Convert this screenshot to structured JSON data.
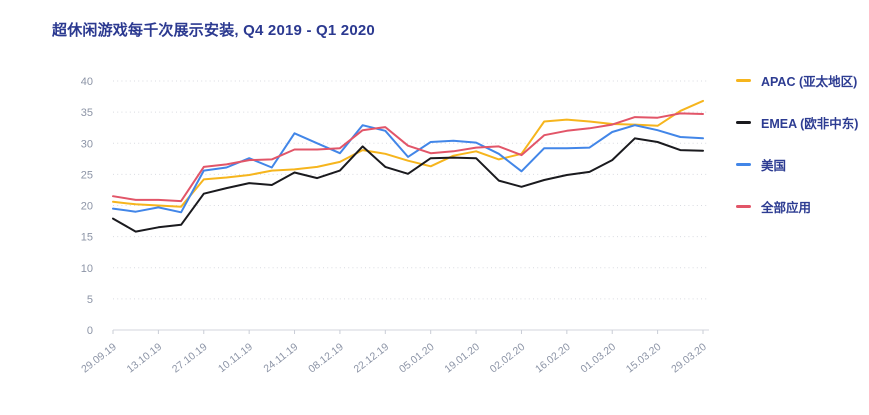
{
  "header": {
    "title": "超休闲游戏每千次展示安装, Q4 2019 - Q1 2020",
    "title_color": "#2B3990"
  },
  "legend": {
    "text_color": "#2D3C92",
    "items": [
      {
        "id": "apac",
        "label": "APAC (亚太地区)",
        "color": "#F6B51D"
      },
      {
        "id": "emea",
        "label": "EMEA (欧非中东)",
        "color": "#1A1A1E"
      },
      {
        "id": "usa",
        "label": "美国",
        "color": "#4286E8"
      },
      {
        "id": "all",
        "label": "全部应用",
        "color": "#E25568"
      }
    ]
  },
  "chart_data": {
    "type": "line",
    "title": "超休闲游戏每千次展示安装, Q4 2019 - Q1 2020",
    "xlabel": "",
    "ylabel": "",
    "ylim": [
      0,
      40
    ],
    "y_ticks": [
      0,
      5,
      10,
      15,
      20,
      25,
      30,
      35,
      40
    ],
    "grid": "horizontal-dotted",
    "legend_position": "right",
    "axis_color": "#8C94A6",
    "gridline_color": "#D9DBE1",
    "n_points": 27,
    "points_per_label": 2,
    "x_tick_labels": [
      "29.09.19",
      "13.10.19",
      "27.10.19",
      "10.11.19",
      "24.11.19",
      "08.12.19",
      "22.12.19",
      "05.01.20",
      "19.01.20",
      "02.02.20",
      "16.02.20",
      "01.03.20",
      "15.03.20",
      "29.03.20"
    ],
    "series": [
      {
        "id": "apac",
        "name": "APAC (亚太地区)",
        "color": "#F6B51D",
        "values": [
          20.6,
          20.2,
          20.0,
          19.8,
          24.2,
          24.5,
          24.9,
          25.6,
          25.8,
          26.2,
          27.0,
          28.9,
          28.3,
          27.2,
          26.3,
          28.0,
          28.7,
          27.4,
          28.3,
          33.5,
          33.8,
          33.5,
          33.1,
          33.0,
          32.8,
          35.2,
          36.8
        ]
      },
      {
        "id": "emea",
        "name": "EMEA (欧非中东)",
        "color": "#1A1A1E",
        "values": [
          17.9,
          15.8,
          16.5,
          16.9,
          21.9,
          22.8,
          23.6,
          23.3,
          25.3,
          24.4,
          25.6,
          29.5,
          26.2,
          25.1,
          27.6,
          27.7,
          27.6,
          24.0,
          23.0,
          24.1,
          24.9,
          25.4,
          27.3,
          30.8,
          30.2,
          28.9,
          28.8
        ]
      },
      {
        "id": "usa",
        "name": "美国",
        "color": "#4286E8",
        "values": [
          19.5,
          19.0,
          19.7,
          18.9,
          25.6,
          26.1,
          27.6,
          26.1,
          31.6,
          30.0,
          28.4,
          32.9,
          32.0,
          27.8,
          30.2,
          30.4,
          30.1,
          28.3,
          25.5,
          29.2,
          29.2,
          29.3,
          31.8,
          32.9,
          32.1,
          31.0,
          30.8
        ]
      },
      {
        "id": "all",
        "name": "全部应用",
        "color": "#E25568",
        "values": [
          21.5,
          20.9,
          20.9,
          20.7,
          26.2,
          26.6,
          27.3,
          27.4,
          29.0,
          29.0,
          29.2,
          32.1,
          32.6,
          29.6,
          28.4,
          28.7,
          29.3,
          29.5,
          28.1,
          31.3,
          32.0,
          32.4,
          33.0,
          34.2,
          34.1,
          34.8,
          34.7
        ]
      }
    ]
  }
}
